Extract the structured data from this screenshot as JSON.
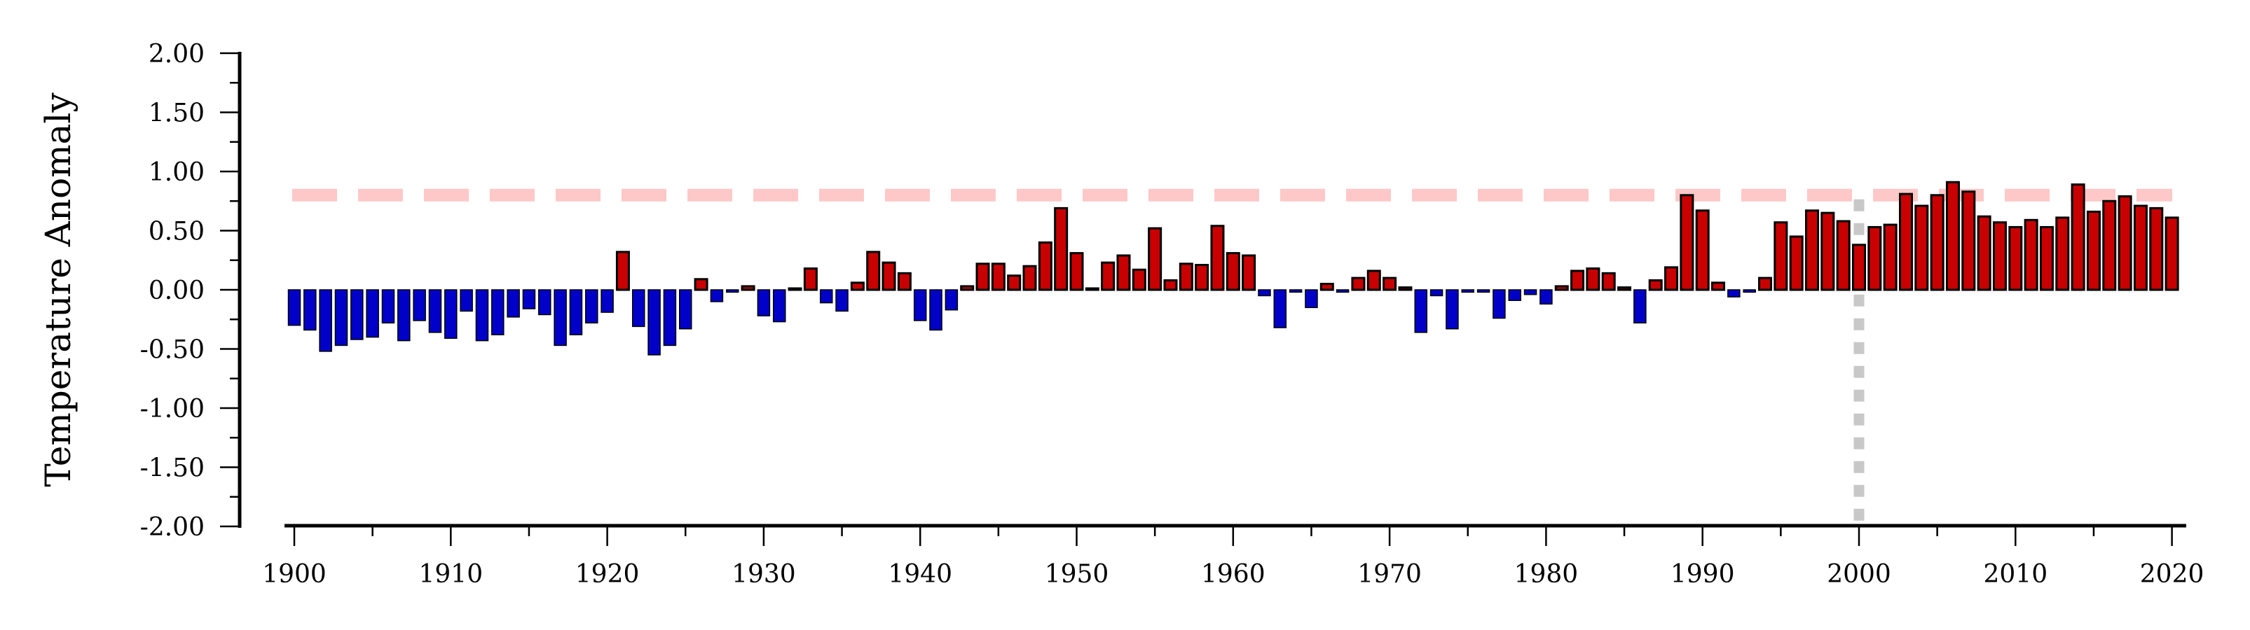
{
  "chart_data": {
    "type": "bar",
    "title": "",
    "xlabel": "",
    "ylabel": "Temperature Anomaly",
    "ylim": [
      -2.0,
      2.0
    ],
    "xlim": [
      1900,
      2020
    ],
    "grid": false,
    "legend": "none",
    "y_ticks": [
      "2.00",
      "1.50",
      "1.00",
      "0.50",
      "0.00",
      "-0.50",
      "-1.00",
      "-1.50",
      "-2.00"
    ],
    "y_tick_values": [
      2.0,
      1.5,
      1.0,
      0.5,
      0.0,
      -0.5,
      -1.0,
      -1.5,
      -2.0
    ],
    "x_ticks": [
      "1900",
      "1910",
      "1920",
      "1930",
      "1940",
      "1950",
      "1960",
      "1970",
      "1980",
      "1990",
      "2000",
      "2010",
      "2020"
    ],
    "colors": {
      "positive": "#c80000",
      "negative": "#0000c8",
      "bar_outline": "#000000",
      "reference_line": "#ffc8c8",
      "marker_line": "#c8c8c8"
    },
    "reference_line": {
      "value": 0.8,
      "style": "dashed"
    },
    "vertical_marker": {
      "x": 2000,
      "style": "dotted"
    },
    "x": [
      1900,
      1901,
      1902,
      1903,
      1904,
      1905,
      1906,
      1907,
      1908,
      1909,
      1910,
      1911,
      1912,
      1913,
      1914,
      1915,
      1916,
      1917,
      1918,
      1919,
      1920,
      1921,
      1922,
      1923,
      1924,
      1925,
      1926,
      1927,
      1928,
      1929,
      1930,
      1931,
      1932,
      1933,
      1934,
      1935,
      1936,
      1937,
      1938,
      1939,
      1940,
      1941,
      1942,
      1943,
      1944,
      1945,
      1946,
      1947,
      1948,
      1949,
      1950,
      1951,
      1952,
      1953,
      1954,
      1955,
      1956,
      1957,
      1958,
      1959,
      1960,
      1961,
      1962,
      1963,
      1964,
      1965,
      1966,
      1967,
      1968,
      1969,
      1970,
      1971,
      1972,
      1973,
      1974,
      1975,
      1976,
      1977,
      1978,
      1979,
      1980,
      1981,
      1982,
      1983,
      1984,
      1985,
      1986,
      1987,
      1988,
      1989,
      1990,
      1991,
      1992,
      1993,
      1994,
      1995,
      1996,
      1997,
      1998,
      1999,
      2000,
      2001,
      2002,
      2003,
      2004,
      2005,
      2006,
      2007,
      2008,
      2009,
      2010,
      2011,
      2012,
      2013,
      2014,
      2015,
      2016,
      2017,
      2018,
      2019,
      2020
    ],
    "values": [
      -0.3,
      -0.34,
      -0.52,
      -0.47,
      -0.42,
      -0.4,
      -0.28,
      -0.43,
      -0.26,
      -0.36,
      -0.41,
      -0.18,
      -0.43,
      -0.38,
      -0.23,
      -0.16,
      -0.21,
      -0.47,
      -0.38,
      -0.28,
      -0.19,
      0.32,
      -0.31,
      -0.55,
      -0.47,
      -0.33,
      0.09,
      -0.1,
      -0.02,
      0.03,
      -0.22,
      -0.27,
      0.0,
      0.18,
      -0.11,
      -0.18,
      0.06,
      0.32,
      0.23,
      0.14,
      -0.26,
      -0.34,
      -0.17,
      0.03,
      0.22,
      0.22,
      0.12,
      0.2,
      0.4,
      0.69,
      0.31,
      0.01,
      0.23,
      0.29,
      0.17,
      0.52,
      0.08,
      0.22,
      0.21,
      0.54,
      0.31,
      0.29,
      -0.05,
      -0.32,
      -0.02,
      -0.15,
      0.05,
      -0.02,
      0.1,
      0.16,
      0.1,
      0.02,
      -0.36,
      -0.05,
      -0.33,
      -0.02,
      -0.02,
      -0.24,
      -0.09,
      -0.04,
      -0.12,
      0.03,
      0.16,
      0.18,
      0.14,
      0.02,
      -0.28,
      0.08,
      0.19,
      0.8,
      0.67,
      0.06,
      -0.06,
      -0.02,
      0.1,
      0.57,
      0.45,
      0.67,
      0.65,
      0.58,
      0.38,
      0.53,
      0.55,
      0.81,
      0.71,
      0.8,
      0.91,
      0.83,
      0.62,
      0.57,
      0.53,
      0.59,
      0.53,
      0.61,
      0.89,
      0.66,
      0.75,
      0.79,
      0.71,
      0.69,
      0.61
    ]
  }
}
